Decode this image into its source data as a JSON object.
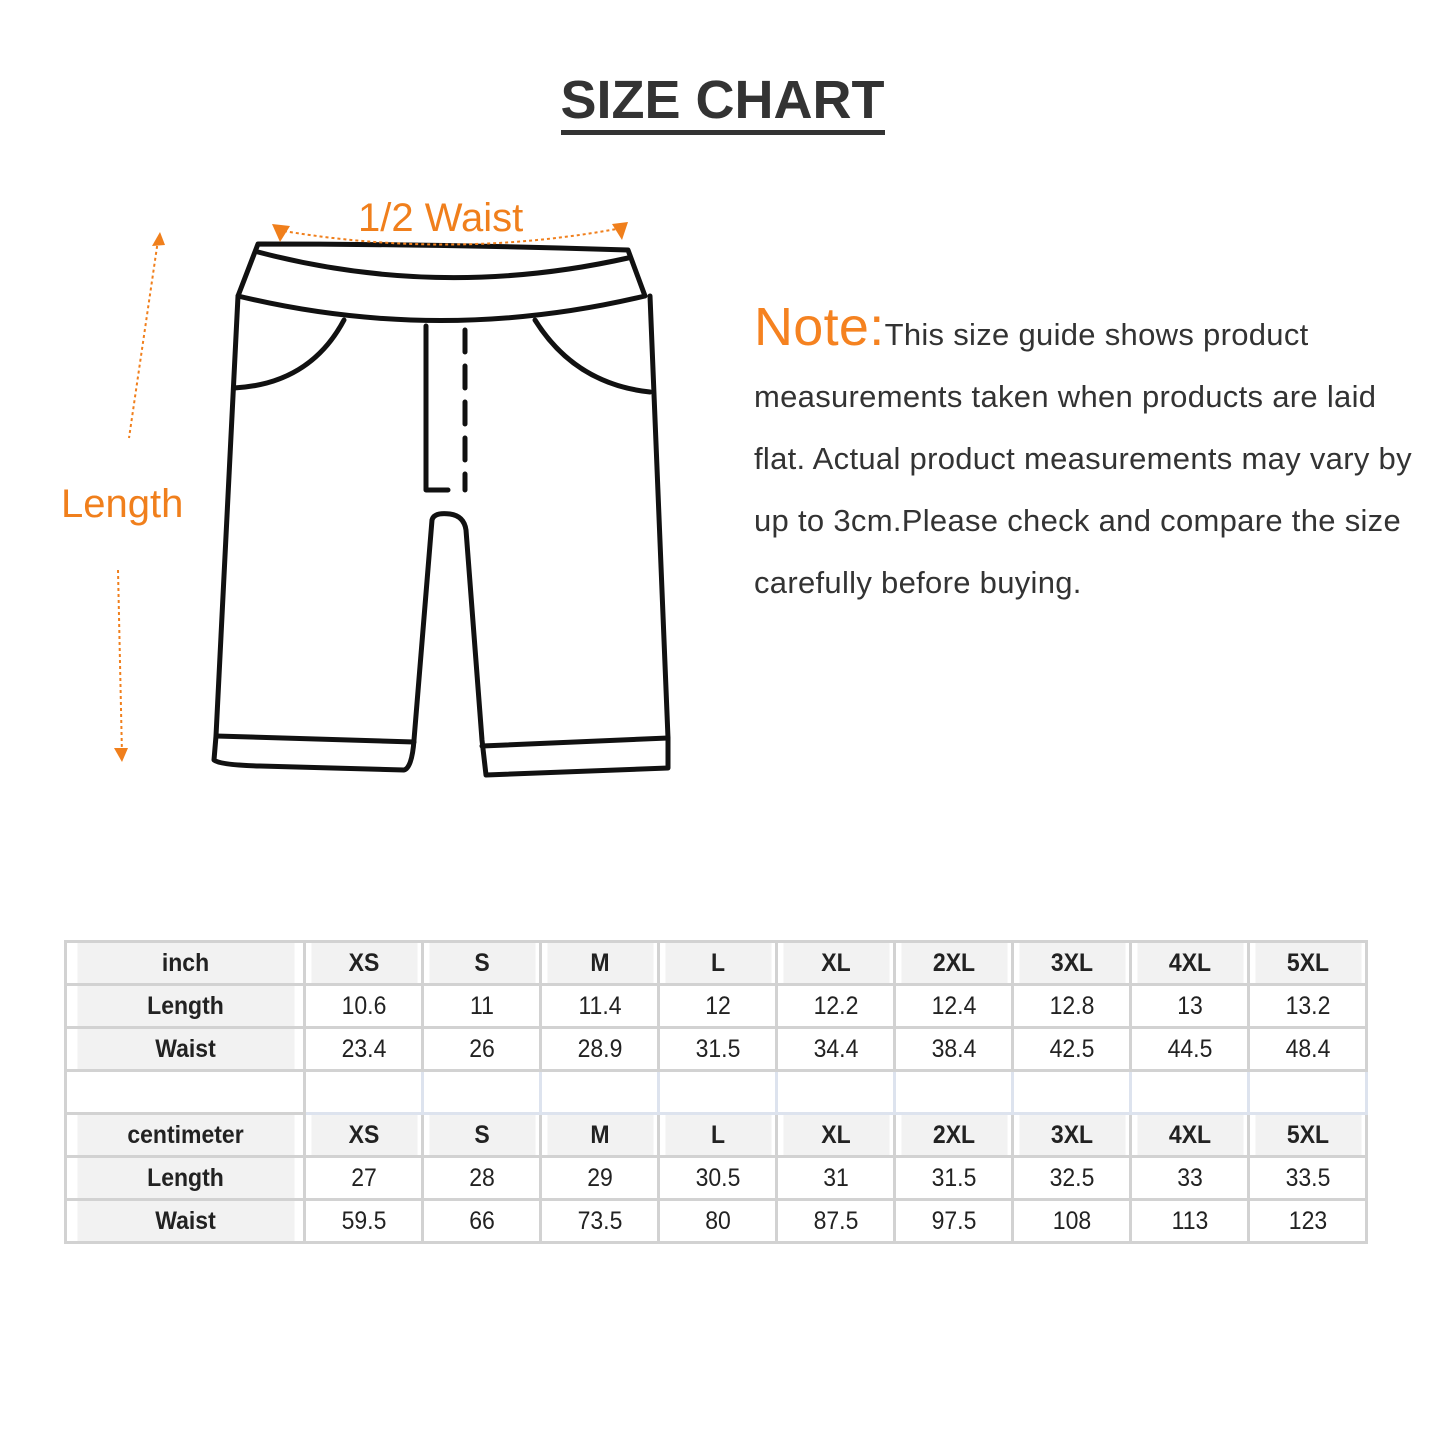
{
  "title": "SIZE CHART",
  "diagram": {
    "waist_label": "1/2 Waist",
    "length_label": "Length",
    "accent_color": "#f07f1c"
  },
  "note": {
    "label": "Note:",
    "text": "This size guide shows product measurements taken when products are laid flat. Actual product measurements may vary by up to 3cm.Please check and compare the size carefully before buying."
  },
  "sizes": [
    "XS",
    "S",
    "M",
    "L",
    "XL",
    "2XL",
    "3XL",
    "4XL",
    "5XL"
  ],
  "inch": {
    "unit": "inch",
    "rows": [
      {
        "label": "Length",
        "values": [
          "10.6",
          "11",
          "11.4",
          "12",
          "12.2",
          "12.4",
          "12.8",
          "13",
          "13.2"
        ]
      },
      {
        "label": "Waist",
        "values": [
          "23.4",
          "26",
          "28.9",
          "31.5",
          "34.4",
          "38.4",
          "42.5",
          "44.5",
          "48.4"
        ]
      }
    ]
  },
  "centimeter": {
    "unit": "centimeter",
    "rows": [
      {
        "label": "Length",
        "values": [
          "27",
          "28",
          "29",
          "30.5",
          "31",
          "31.5",
          "32.5",
          "33",
          "33.5"
        ]
      },
      {
        "label": "Waist",
        "values": [
          "59.5",
          "66",
          "73.5",
          "80",
          "87.5",
          "97.5",
          "108",
          "113",
          "123"
        ]
      }
    ]
  }
}
